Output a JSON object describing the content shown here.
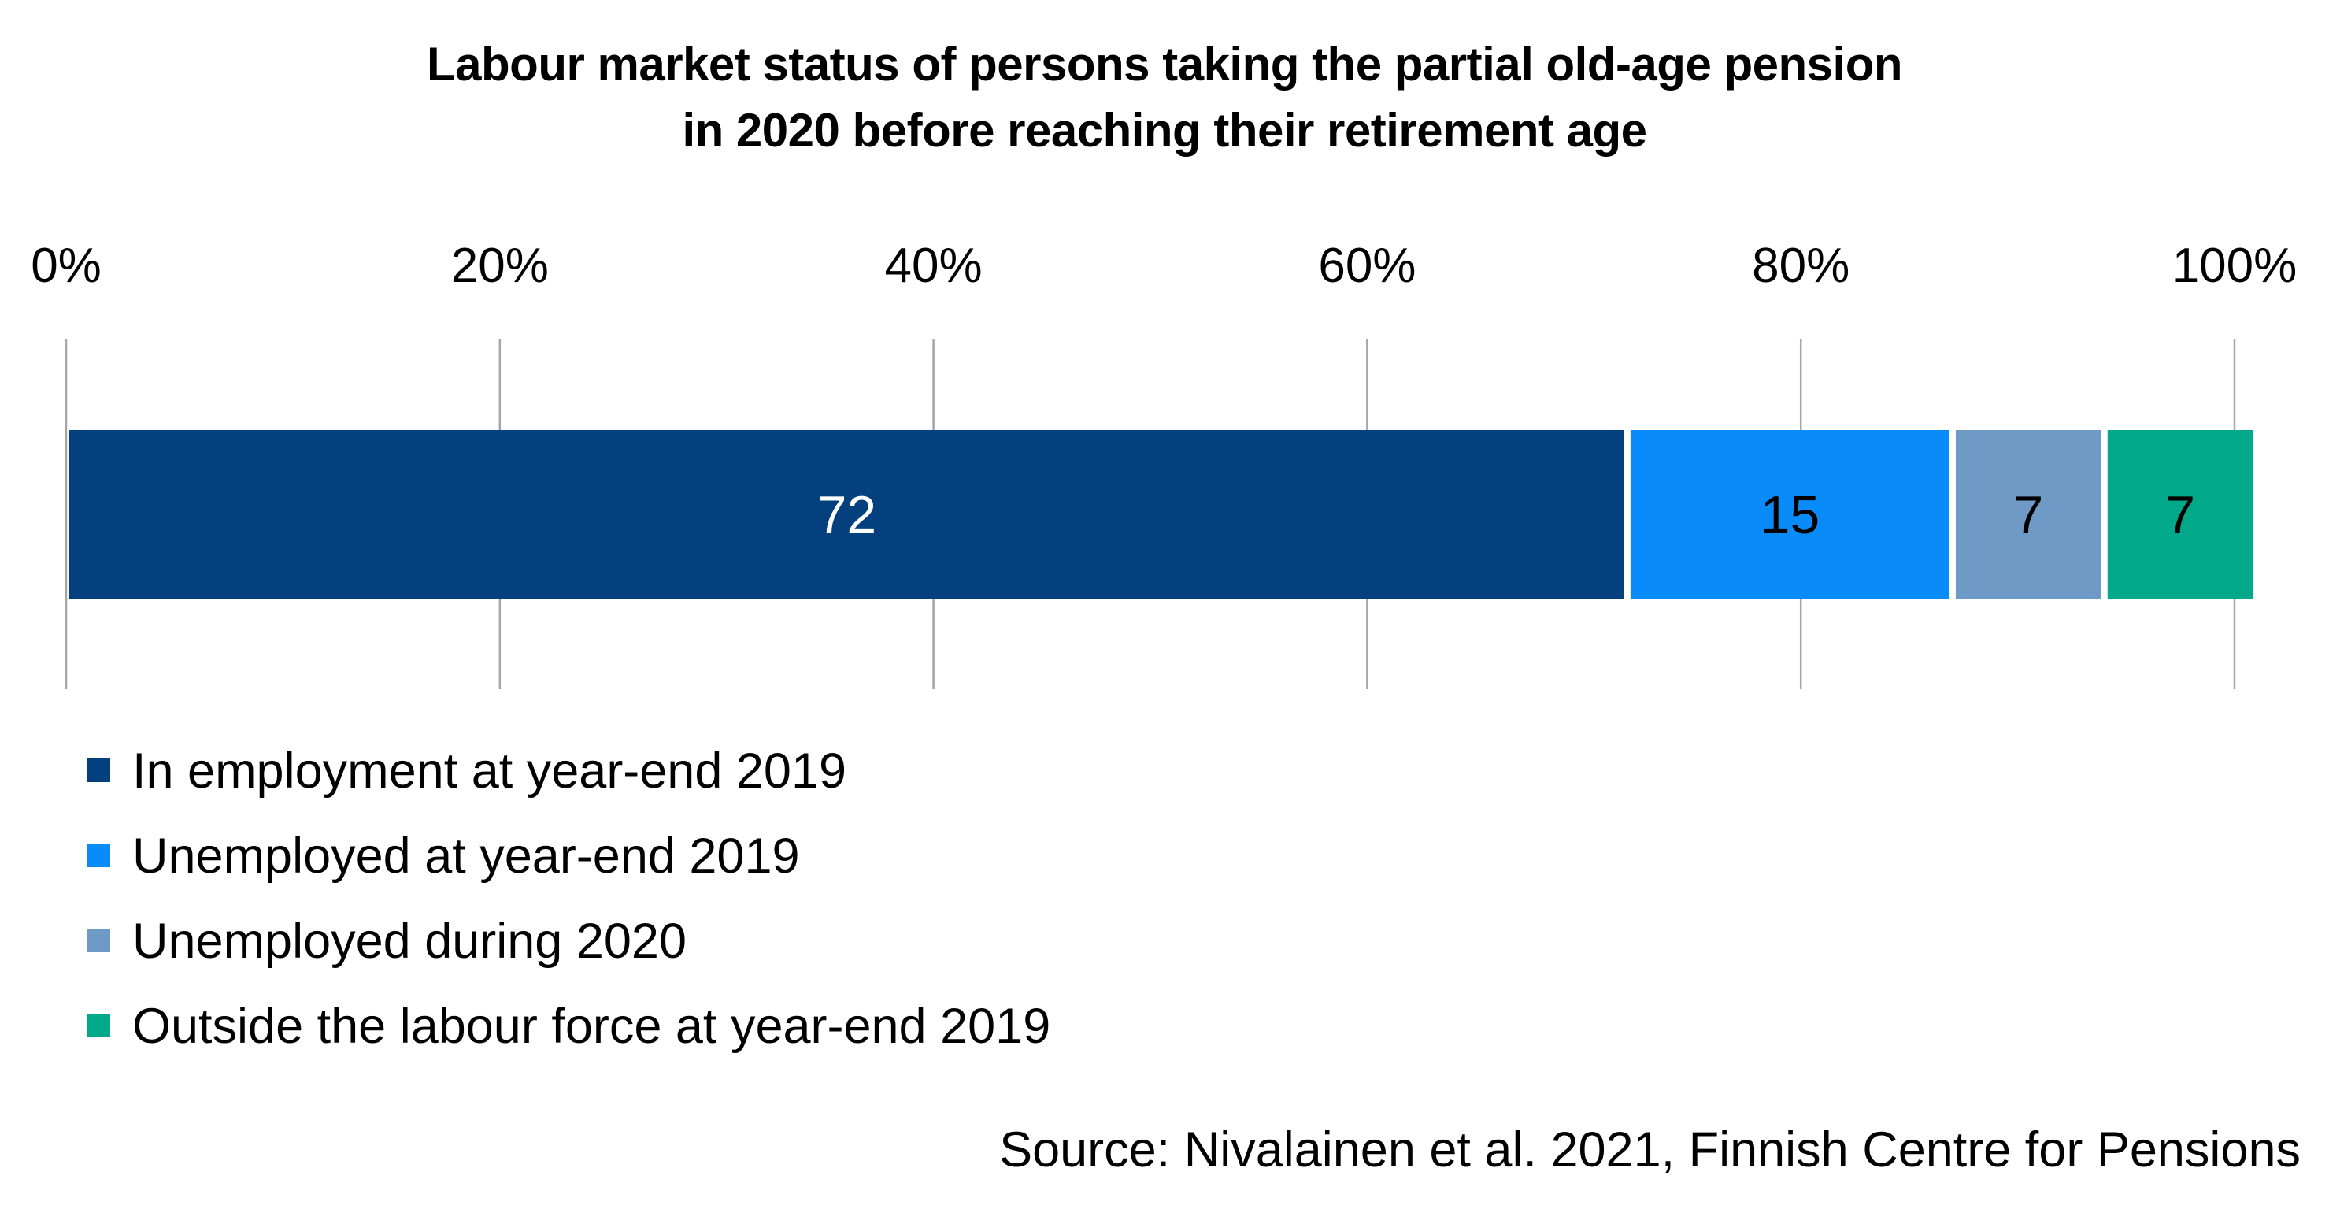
{
  "chart_data": {
    "type": "bar",
    "orientation": "horizontal",
    "stacked": true,
    "title_lines": [
      "Labour market status of persons taking the partial old-age pension",
      "in 2020 before reaching their retirement age"
    ],
    "xlim": [
      0,
      100
    ],
    "x_ticks": [
      0,
      20,
      40,
      60,
      80,
      100
    ],
    "x_tick_labels": [
      "0%",
      "20%",
      "40%",
      "60%",
      "80%",
      "100%"
    ],
    "grid": true,
    "legend_position": "bottom-left",
    "series": [
      {
        "name": "In employment at year-end 2019",
        "value": 72,
        "label": "72",
        "color": "#04407D",
        "label_color": "#FFFFFF"
      },
      {
        "name": "Unemployed at year-end 2019",
        "value": 15,
        "label": "15",
        "color": "#0A8BFA",
        "label_color": "#000000"
      },
      {
        "name": "Unemployed during 2020",
        "value": 7,
        "label": "7",
        "color": "#6E9AC5",
        "label_color": "#000000"
      },
      {
        "name": "Outside the labour force at year-end 2019",
        "value": 7,
        "label": "7",
        "color": "#02A88A",
        "label_color": "#000000"
      }
    ]
  },
  "source": "Source: Nivalainen et al. 2021, Finnish Centre for Pensions"
}
